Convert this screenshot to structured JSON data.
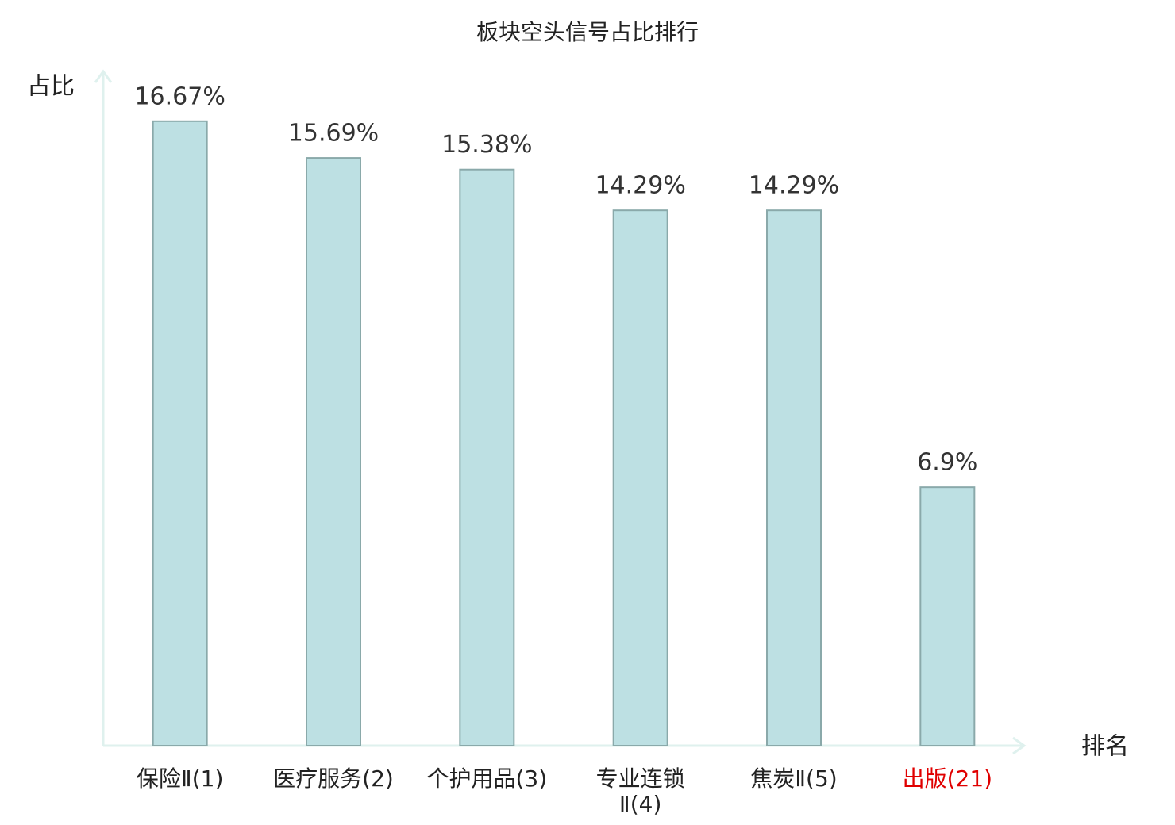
{
  "chart_data": {
    "type": "bar",
    "title": "板块空头信号占比排行",
    "y_label": "占比",
    "x_label": "排名",
    "categories": [
      "保险Ⅱ(1)",
      "医疗服务(2)",
      "个护用品(3)",
      "专业连锁Ⅱ(4)",
      "焦炭Ⅱ(5)",
      "出版(21)"
    ],
    "values": [
      16.67,
      15.69,
      15.38,
      14.29,
      14.29,
      6.9
    ],
    "value_labels": [
      "16.67%",
      "15.69%",
      "15.38%",
      "14.29%",
      "14.29%",
      "6.9%"
    ],
    "color": "#bde0e3",
    "edge_color": "#8aa9aa",
    "axis_color": "#dff1ee",
    "category_colors": [
      "#222222",
      "#222222",
      "#222222",
      "#222222",
      "#222222",
      "#e00000"
    ],
    "ylim": [
      0,
      18
    ]
  }
}
